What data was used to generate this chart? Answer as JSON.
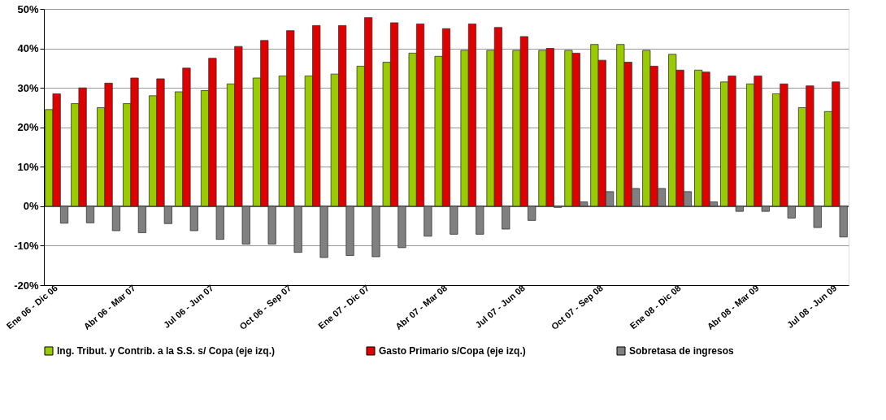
{
  "chart_data": {
    "type": "bar",
    "categories": [
      "Ene 06 - Dic 06",
      null,
      null,
      "Abr 06 - Mar 07",
      null,
      null,
      "Jul 06 - Jun 07",
      null,
      null,
      "Oct 06 - Sep 07",
      null,
      null,
      "Ene 07 - Dic 07",
      null,
      null,
      "Abr 07 - Mar 08",
      null,
      null,
      "Jul 07 - Jun 08",
      null,
      null,
      "Oct 07 - Sep 08",
      null,
      null,
      "Ene 08 - Dic 08",
      null,
      null,
      "Abr 08 - Mar 09",
      null,
      null,
      "Jul 08 - Jun 09"
    ],
    "series": [
      {
        "name": "Ing. Tribut. y Contrib. a la S.S. s/ Copa (eje izq.)",
        "color": "#99cc00",
        "values": [
          24.5,
          26,
          25,
          26,
          28,
          29,
          29.3,
          31,
          32.5,
          33,
          33,
          33.5,
          35.5,
          36.5,
          38.8,
          38,
          39.5,
          39.5,
          39.5,
          39.5,
          39.5,
          41,
          41,
          39.5,
          38.5,
          34.5,
          31.5,
          31,
          28.5,
          25,
          24
        ]
      },
      {
        "name": "Gasto Primario s/Copa (eje izq.)",
        "color": "#e00000",
        "values": [
          28.5,
          30,
          31.2,
          32.5,
          32.3,
          35,
          37.5,
          40.5,
          42,
          44.5,
          45.8,
          45.8,
          47.8,
          46.5,
          46.2,
          45,
          46.2,
          45.3,
          43,
          40,
          38.8,
          37,
          36.5,
          35.5,
          34.5,
          34,
          33,
          33,
          31,
          30.5,
          31.5
        ]
      },
      {
        "name": "Sobretasa de ingresos",
        "color": "#808080",
        "values": [
          -4.3,
          -4.2,
          -6.2,
          -6.7,
          -4.4,
          -6.2,
          -8.4,
          -9.6,
          -9.6,
          -11.7,
          -13,
          -12.5,
          -12.8,
          -10.5,
          -7.6,
          -7.1,
          -7.1,
          -5.8,
          -3.6,
          -0.3,
          1.1,
          3.7,
          4.5,
          4.5,
          3.7,
          1.1,
          -1.3,
          -1.3,
          -3,
          -5.4,
          -7.8
        ]
      }
    ],
    "ylim": [
      -20,
      50
    ],
    "yticks": [
      {
        "value": -20,
        "label": "-20%"
      },
      {
        "value": -10,
        "label": "-10%"
      },
      {
        "value": 0,
        "label": "0%"
      },
      {
        "value": 10,
        "label": "10%"
      },
      {
        "value": 20,
        "label": "20%"
      },
      {
        "value": 30,
        "label": "30%"
      },
      {
        "value": 40,
        "label": "40%"
      },
      {
        "value": 50,
        "label": "50%"
      }
    ],
    "grid": "y",
    "legend": "bottom"
  }
}
